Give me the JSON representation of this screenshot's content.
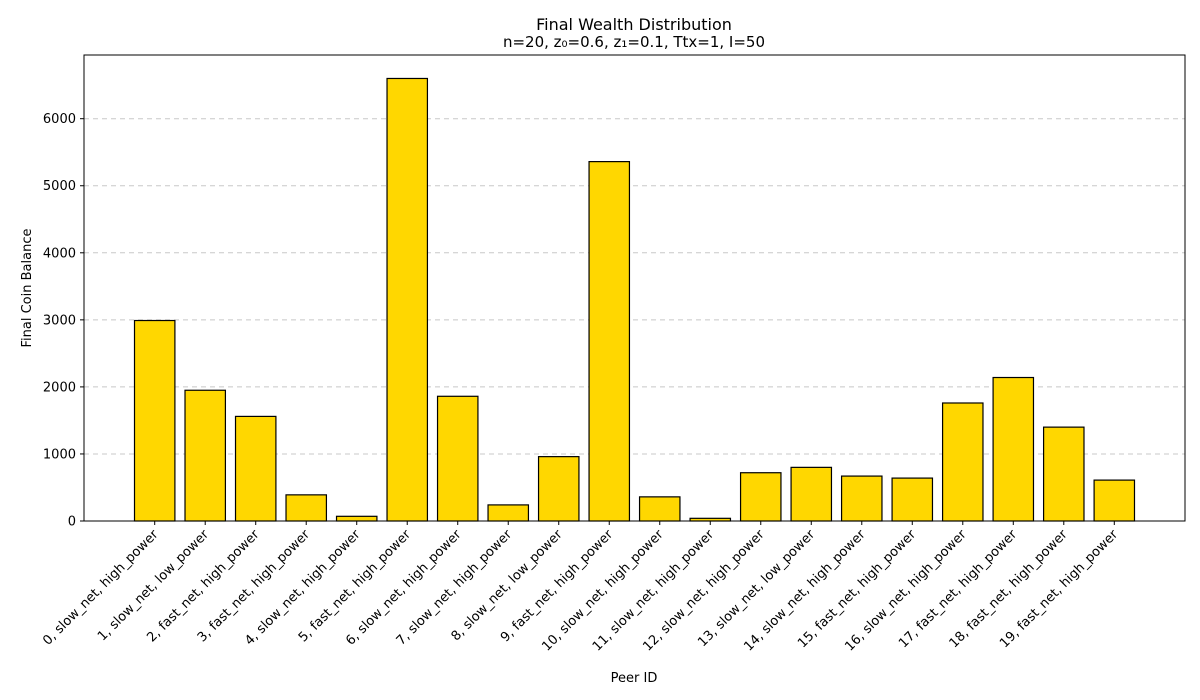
{
  "chart_data": {
    "type": "bar",
    "title": "Final Wealth Distribution",
    "subtitle": "n=20, z₀=0.6, z₁=0.1, Ttx=1, I=50",
    "xlabel": "Peer ID",
    "ylabel": "Final Coin Balance",
    "ylim": [
      0,
      6950
    ],
    "yticks": [
      0,
      1000,
      2000,
      3000,
      4000,
      5000,
      6000
    ],
    "grid": "y-dashed",
    "colors": {
      "bar_fill": "#ffd700",
      "bar_edge": "#000000",
      "grid": "#c8c8c8"
    },
    "categories": [
      "0, slow_net, high_power",
      "1, slow_net, low_power",
      "2, fast_net, high_power",
      "3, fast_net, high_power",
      "4, slow_net, high_power",
      "5, fast_net, high_power",
      "6, slow_net, high_power",
      "7, slow_net, high_power",
      "8, slow_net, low_power",
      "9, fast_net, high_power",
      "10, slow_net, high_power",
      "11, slow_net, high_power",
      "12, slow_net, high_power",
      "13, slow_net, low_power",
      "14, slow_net, high_power",
      "15, fast_net, high_power",
      "16, slow_net, high_power",
      "17, fast_net, high_power",
      "18, fast_net, high_power",
      "19, fast_net, high_power"
    ],
    "values": [
      2990,
      1950,
      1560,
      390,
      70,
      6600,
      1860,
      240,
      960,
      5360,
      360,
      40,
      720,
      800,
      670,
      640,
      1760,
      2140,
      1400,
      610
    ]
  }
}
